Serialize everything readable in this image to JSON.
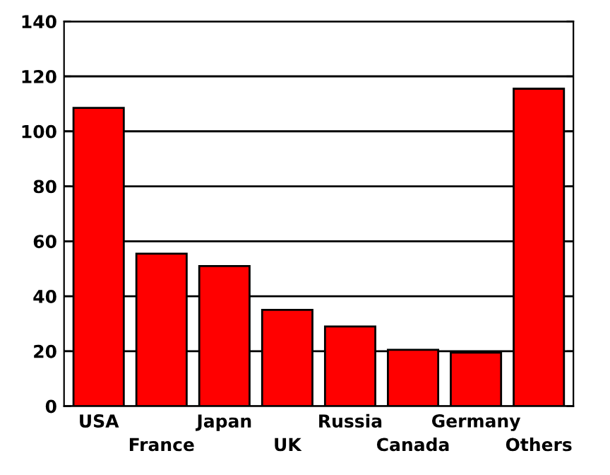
{
  "chart_data": {
    "type": "bar",
    "categories": [
      "USA",
      "France",
      "Japan",
      "UK",
      "Russia",
      "Canada",
      "Germany",
      "Others"
    ],
    "values": [
      108.5,
      55.5,
      51,
      35,
      29,
      20.5,
      19.5,
      115.5
    ],
    "color": "#ff0000",
    "ylim": [
      0,
      140
    ],
    "yticks": [
      0,
      20,
      40,
      60,
      80,
      100,
      120,
      140
    ],
    "grid": "y",
    "legend": false
  }
}
